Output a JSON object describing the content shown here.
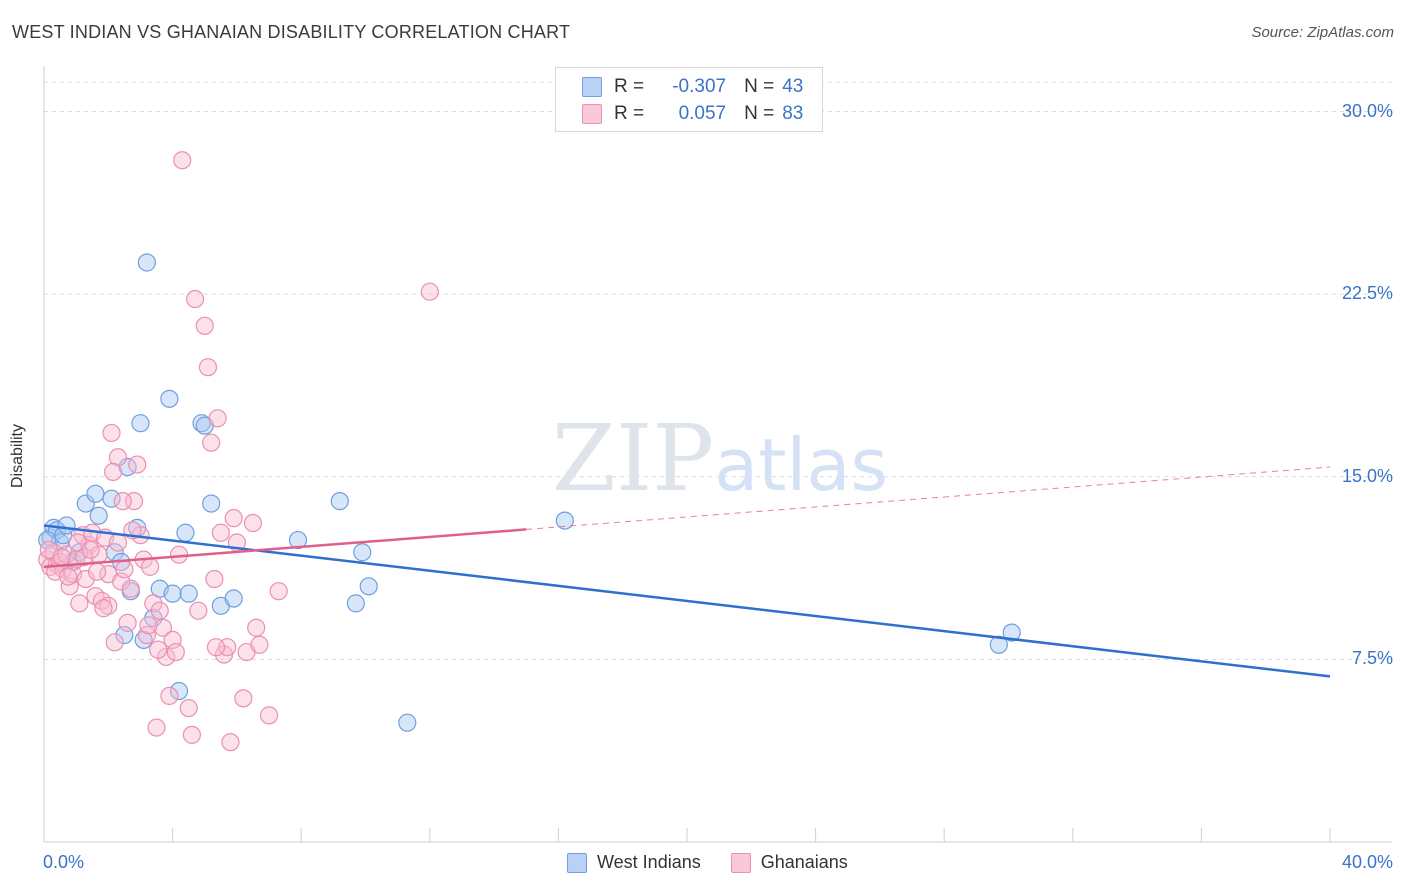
{
  "chart_data": {
    "type": "scatter",
    "title": "WEST INDIAN VS GHANAIAN DISABILITY CORRELATION CHART",
    "source": "Source: ZipAtlas.com",
    "xlabel": "",
    "ylabel": "Disability",
    "xlim": [
      0,
      40
    ],
    "ylim": [
      0,
      31.5
    ],
    "x_tick_labels": [
      "0.0%",
      "40.0%"
    ],
    "y_ticks": [
      7.5,
      15.0,
      22.5,
      30.0
    ],
    "y_tick_labels": [
      "7.5%",
      "15.0%",
      "22.5%",
      "30.0%"
    ],
    "watermark": "ZIPatlas",
    "legend": {
      "r_label": "R =",
      "n_label": "N =",
      "entries": [
        {
          "name": "West Indians",
          "r": "-0.307",
          "n": "43"
        },
        {
          "name": "Ghanaians",
          "r": "0.057",
          "n": "83"
        }
      ]
    },
    "series": [
      {
        "name": "West Indians",
        "color": "#6f9fe0",
        "fill": "#a9c8f2",
        "line_color": "#2f6fd0",
        "trend": {
          "x": [
            0,
            40
          ],
          "y": [
            13.0,
            6.8
          ]
        },
        "points": [
          [
            0.2,
            12.5
          ],
          [
            0.3,
            12.9
          ],
          [
            0.4,
            12.8
          ],
          [
            0.5,
            12.3
          ],
          [
            0.6,
            12.6
          ],
          [
            0.7,
            13.0
          ],
          [
            0.9,
            11.5
          ],
          [
            1.1,
            11.9
          ],
          [
            1.3,
            13.9
          ],
          [
            1.6,
            14.3
          ],
          [
            1.7,
            13.4
          ],
          [
            2.1,
            14.1
          ],
          [
            2.2,
            11.9
          ],
          [
            2.4,
            11.5
          ],
          [
            2.5,
            8.5
          ],
          [
            2.6,
            15.4
          ],
          [
            2.7,
            10.3
          ],
          [
            2.9,
            12.9
          ],
          [
            3.0,
            17.2
          ],
          [
            3.1,
            8.3
          ],
          [
            3.2,
            23.8
          ],
          [
            3.4,
            9.2
          ],
          [
            3.6,
            10.4
          ],
          [
            3.9,
            18.2
          ],
          [
            4.0,
            10.2
          ],
          [
            4.2,
            6.2
          ],
          [
            4.4,
            12.7
          ],
          [
            4.5,
            10.2
          ],
          [
            4.9,
            17.2
          ],
          [
            5.0,
            17.1
          ],
          [
            5.2,
            13.9
          ],
          [
            5.5,
            9.7
          ],
          [
            5.9,
            10.0
          ],
          [
            7.9,
            12.4
          ],
          [
            9.2,
            14.0
          ],
          [
            9.7,
            9.8
          ],
          [
            9.9,
            11.9
          ],
          [
            10.1,
            10.5
          ],
          [
            11.3,
            4.9
          ],
          [
            16.2,
            13.2
          ],
          [
            29.7,
            8.1
          ],
          [
            30.1,
            8.6
          ],
          [
            0.1,
            12.4
          ]
        ]
      },
      {
        "name": "Ghanaians",
        "color": "#ec8fb0",
        "fill": "#f6bdd0",
        "line_color": "#e0608c",
        "trend": {
          "x": [
            0,
            40
          ],
          "y": [
            11.3,
            15.4
          ]
        },
        "trend_solid_end": 15,
        "points": [
          [
            0.1,
            11.6
          ],
          [
            0.2,
            11.3
          ],
          [
            0.3,
            11.9
          ],
          [
            0.4,
            11.4
          ],
          [
            0.5,
            11.5
          ],
          [
            0.6,
            11.2
          ],
          [
            0.7,
            11.8
          ],
          [
            0.8,
            10.5
          ],
          [
            0.9,
            11.0
          ],
          [
            1.0,
            11.6
          ],
          [
            1.1,
            9.8
          ],
          [
            1.2,
            12.6
          ],
          [
            1.3,
            10.8
          ],
          [
            1.4,
            12.2
          ],
          [
            1.5,
            12.7
          ],
          [
            1.6,
            10.1
          ],
          [
            1.7,
            11.8
          ],
          [
            1.8,
            9.9
          ],
          [
            1.9,
            12.5
          ],
          [
            2.0,
            11.0
          ],
          [
            2.0,
            9.7
          ],
          [
            2.1,
            16.8
          ],
          [
            2.2,
            8.2
          ],
          [
            2.3,
            15.8
          ],
          [
            2.3,
            12.3
          ],
          [
            2.4,
            10.7
          ],
          [
            2.5,
            11.2
          ],
          [
            2.6,
            9.0
          ],
          [
            2.7,
            10.4
          ],
          [
            2.8,
            14.0
          ],
          [
            2.9,
            15.5
          ],
          [
            3.0,
            12.6
          ],
          [
            3.1,
            11.6
          ],
          [
            3.2,
            8.5
          ],
          [
            3.3,
            11.3
          ],
          [
            3.4,
            9.8
          ],
          [
            3.5,
            4.7
          ],
          [
            3.6,
            9.5
          ],
          [
            3.7,
            8.8
          ],
          [
            3.8,
            7.6
          ],
          [
            3.9,
            6.0
          ],
          [
            4.0,
            8.3
          ],
          [
            4.1,
            7.8
          ],
          [
            4.2,
            11.8
          ],
          [
            4.3,
            28.0
          ],
          [
            4.5,
            5.5
          ],
          [
            4.6,
            4.4
          ],
          [
            4.7,
            22.3
          ],
          [
            4.8,
            9.5
          ],
          [
            5.0,
            21.2
          ],
          [
            5.1,
            19.5
          ],
          [
            5.2,
            16.4
          ],
          [
            5.3,
            10.8
          ],
          [
            5.4,
            17.4
          ],
          [
            5.5,
            12.7
          ],
          [
            5.6,
            7.7
          ],
          [
            5.7,
            8.0
          ],
          [
            5.8,
            4.1
          ],
          [
            5.9,
            13.3
          ],
          [
            6.0,
            12.3
          ],
          [
            6.2,
            5.9
          ],
          [
            6.3,
            7.8
          ],
          [
            6.5,
            13.1
          ],
          [
            6.6,
            8.8
          ],
          [
            6.7,
            8.1
          ],
          [
            7.0,
            5.2
          ],
          [
            7.3,
            10.3
          ],
          [
            12.0,
            22.6
          ],
          [
            0.15,
            12.0
          ],
          [
            0.35,
            11.1
          ],
          [
            0.55,
            11.7
          ],
          [
            0.75,
            10.9
          ],
          [
            1.05,
            12.3
          ],
          [
            1.25,
            11.7
          ],
          [
            1.45,
            12.0
          ],
          [
            1.65,
            11.1
          ],
          [
            1.85,
            9.6
          ],
          [
            2.15,
            15.2
          ],
          [
            2.45,
            14.0
          ],
          [
            2.75,
            12.8
          ],
          [
            3.25,
            8.9
          ],
          [
            3.55,
            7.9
          ],
          [
            5.35,
            8.0
          ]
        ]
      }
    ]
  }
}
